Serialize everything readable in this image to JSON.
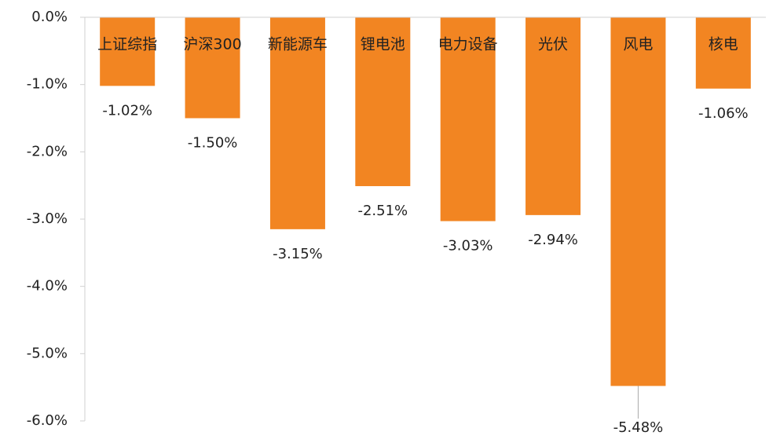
{
  "chart_data": {
    "type": "bar",
    "categories": [
      "上证综指",
      "沪深300",
      "新能源车",
      "锂电池",
      "电力设备",
      "光伏",
      "风电",
      "核电"
    ],
    "values": [
      -1.02,
      -1.5,
      -3.15,
      -2.51,
      -3.03,
      -2.94,
      -5.48,
      -1.06
    ],
    "value_labels": [
      "-1.02%",
      "-1.50%",
      "-3.15%",
      "-2.51%",
      "-3.03%",
      "-2.94%",
      "-5.48%",
      "-1.06%"
    ],
    "color": "#f28522",
    "ylim": [
      -6,
      0
    ],
    "yticks": [
      {
        "value": 0,
        "label": "0.0%"
      },
      {
        "value": -1,
        "label": "-1.0%"
      },
      {
        "value": -2,
        "label": "-2.0%"
      },
      {
        "value": -3,
        "label": "-3.0%"
      },
      {
        "value": -4,
        "label": "-4.0%"
      },
      {
        "value": -5,
        "label": "-5.0%"
      },
      {
        "value": -6,
        "label": "-6.0%"
      }
    ],
    "grid": false
  }
}
